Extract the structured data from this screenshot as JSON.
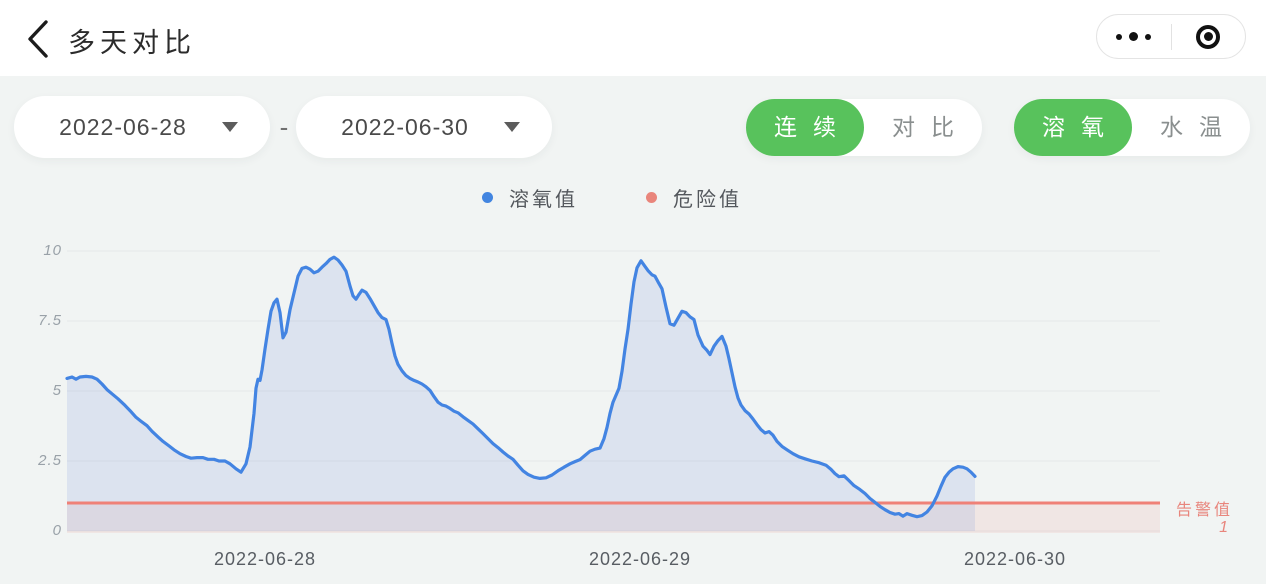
{
  "header": {
    "title": "多天对比",
    "back_icon": "chevron-left",
    "capsule": {
      "more_icon": "three-dots-menu",
      "exit_icon": "target-circle"
    }
  },
  "filters": {
    "date_from": "2022-06-28",
    "date_separator": "-",
    "date_to": "2022-06-30",
    "mode_toggle": {
      "options": [
        {
          "label": "连续",
          "active": true
        },
        {
          "label": "对比",
          "active": false
        }
      ]
    },
    "metric_toggle": {
      "options": [
        {
          "label": "溶氧",
          "active": true
        },
        {
          "label": "水温",
          "active": false
        }
      ]
    }
  },
  "colors": {
    "accent_green": "#58c25c",
    "page_background": "#f1f4f3",
    "header_background": "#ffffff"
  },
  "chart_data": {
    "type": "line",
    "title": "",
    "xlabel": "",
    "ylabel": "",
    "ylim": [
      0,
      10
    ],
    "grid": true,
    "legend_position": "top",
    "y_tick_values": [
      0,
      2.5,
      5,
      7.5,
      10
    ],
    "x_ticks": [
      "2022-06-28",
      "2022-06-29",
      "2022-06-30"
    ],
    "legend": [
      {
        "label": "溶氧值",
        "color": "#4285e0"
      },
      {
        "label": "危险值",
        "color": "#e9857b"
      }
    ],
    "alert_line": {
      "label": "告警值",
      "value": 1,
      "color": "#ef8177",
      "zone_fill": "rgba(236,130,120,0.12)"
    },
    "series": [
      {
        "name": "溶氧值",
        "color": "#4384e2",
        "area_fill": "rgba(113,146,216,0.16)",
        "points": [
          [
            67,
            5.45
          ],
          [
            72,
            5.5
          ],
          [
            76,
            5.42
          ],
          [
            80,
            5.5
          ],
          [
            86,
            5.52
          ],
          [
            92,
            5.5
          ],
          [
            97,
            5.42
          ],
          [
            102,
            5.25
          ],
          [
            107,
            5.05
          ],
          [
            112,
            4.9
          ],
          [
            118,
            4.72
          ],
          [
            124,
            4.52
          ],
          [
            130,
            4.3
          ],
          [
            136,
            4.06
          ],
          [
            141,
            3.92
          ],
          [
            147,
            3.76
          ],
          [
            152,
            3.56
          ],
          [
            158,
            3.36
          ],
          [
            163,
            3.2
          ],
          [
            169,
            3.04
          ],
          [
            174,
            2.9
          ],
          [
            180,
            2.76
          ],
          [
            186,
            2.66
          ],
          [
            191,
            2.6
          ],
          [
            197,
            2.62
          ],
          [
            203,
            2.62
          ],
          [
            208,
            2.56
          ],
          [
            214,
            2.56
          ],
          [
            219,
            2.5
          ],
          [
            225,
            2.5
          ],
          [
            230,
            2.4
          ],
          [
            236,
            2.22
          ],
          [
            241,
            2.1
          ],
          [
            246,
            2.4
          ],
          [
            250,
            3.0
          ],
          [
            254,
            4.2
          ],
          [
            256,
            5.1
          ],
          [
            258,
            5.42
          ],
          [
            260,
            5.38
          ],
          [
            262,
            5.75
          ],
          [
            265,
            6.5
          ],
          [
            268,
            7.2
          ],
          [
            271,
            7.85
          ],
          [
            274,
            8.15
          ],
          [
            277,
            8.28
          ],
          [
            280,
            7.8
          ],
          [
            283,
            6.9
          ],
          [
            286,
            7.1
          ],
          [
            290,
            7.9
          ],
          [
            294,
            8.5
          ],
          [
            298,
            9.1
          ],
          [
            302,
            9.38
          ],
          [
            306,
            9.42
          ],
          [
            310,
            9.35
          ],
          [
            314,
            9.22
          ],
          [
            318,
            9.28
          ],
          [
            322,
            9.42
          ],
          [
            326,
            9.55
          ],
          [
            330,
            9.7
          ],
          [
            334,
            9.78
          ],
          [
            338,
            9.68
          ],
          [
            342,
            9.5
          ],
          [
            346,
            9.28
          ],
          [
            350,
            8.75
          ],
          [
            353,
            8.4
          ],
          [
            356,
            8.28
          ],
          [
            359,
            8.45
          ],
          [
            362,
            8.6
          ],
          [
            366,
            8.52
          ],
          [
            370,
            8.3
          ],
          [
            374,
            8.05
          ],
          [
            378,
            7.8
          ],
          [
            382,
            7.62
          ],
          [
            386,
            7.55
          ],
          [
            389,
            7.2
          ],
          [
            392,
            6.7
          ],
          [
            395,
            6.25
          ],
          [
            398,
            5.95
          ],
          [
            402,
            5.72
          ],
          [
            406,
            5.55
          ],
          [
            410,
            5.45
          ],
          [
            414,
            5.38
          ],
          [
            418,
            5.32
          ],
          [
            422,
            5.25
          ],
          [
            426,
            5.15
          ],
          [
            430,
            5.02
          ],
          [
            434,
            4.8
          ],
          [
            438,
            4.6
          ],
          [
            442,
            4.5
          ],
          [
            446,
            4.46
          ],
          [
            450,
            4.38
          ],
          [
            454,
            4.28
          ],
          [
            458,
            4.22
          ],
          [
            463,
            4.08
          ],
          [
            468,
            3.95
          ],
          [
            473,
            3.82
          ],
          [
            478,
            3.65
          ],
          [
            483,
            3.48
          ],
          [
            488,
            3.3
          ],
          [
            493,
            3.12
          ],
          [
            498,
            2.98
          ],
          [
            503,
            2.82
          ],
          [
            508,
            2.68
          ],
          [
            513,
            2.56
          ],
          [
            518,
            2.35
          ],
          [
            523,
            2.15
          ],
          [
            528,
            2.02
          ],
          [
            534,
            1.92
          ],
          [
            540,
            1.88
          ],
          [
            546,
            1.9
          ],
          [
            552,
            2.0
          ],
          [
            558,
            2.15
          ],
          [
            564,
            2.28
          ],
          [
            570,
            2.4
          ],
          [
            575,
            2.48
          ],
          [
            580,
            2.55
          ],
          [
            585,
            2.7
          ],
          [
            590,
            2.85
          ],
          [
            595,
            2.92
          ],
          [
            600,
            2.96
          ],
          [
            604,
            3.3
          ],
          [
            607,
            3.7
          ],
          [
            610,
            4.2
          ],
          [
            613,
            4.6
          ],
          [
            616,
            4.85
          ],
          [
            619,
            5.1
          ],
          [
            622,
            5.7
          ],
          [
            625,
            6.5
          ],
          [
            628,
            7.2
          ],
          [
            631,
            8.1
          ],
          [
            634,
            8.9
          ],
          [
            637,
            9.4
          ],
          [
            641,
            9.65
          ],
          [
            645,
            9.45
          ],
          [
            648,
            9.3
          ],
          [
            652,
            9.15
          ],
          [
            655,
            9.1
          ],
          [
            658,
            8.9
          ],
          [
            662,
            8.65
          ],
          [
            666,
            8.0
          ],
          [
            670,
            7.4
          ],
          [
            674,
            7.35
          ],
          [
            678,
            7.6
          ],
          [
            682,
            7.85
          ],
          [
            686,
            7.8
          ],
          [
            690,
            7.65
          ],
          [
            694,
            7.55
          ],
          [
            698,
            7.0
          ],
          [
            703,
            6.6
          ],
          [
            707,
            6.45
          ],
          [
            710,
            6.3
          ],
          [
            714,
            6.6
          ],
          [
            718,
            6.8
          ],
          [
            722,
            6.95
          ],
          [
            726,
            6.6
          ],
          [
            729,
            6.15
          ],
          [
            732,
            5.65
          ],
          [
            735,
            5.15
          ],
          [
            738,
            4.75
          ],
          [
            741,
            4.5
          ],
          [
            745,
            4.3
          ],
          [
            749,
            4.18
          ],
          [
            753,
            4.0
          ],
          [
            757,
            3.8
          ],
          [
            761,
            3.62
          ],
          [
            765,
            3.5
          ],
          [
            769,
            3.55
          ],
          [
            773,
            3.42
          ],
          [
            777,
            3.2
          ],
          [
            782,
            3.02
          ],
          [
            787,
            2.9
          ],
          [
            793,
            2.76
          ],
          [
            799,
            2.65
          ],
          [
            805,
            2.58
          ],
          [
            812,
            2.5
          ],
          [
            819,
            2.44
          ],
          [
            826,
            2.35
          ],
          [
            831,
            2.2
          ],
          [
            835,
            2.05
          ],
          [
            839,
            1.94
          ],
          [
            844,
            1.97
          ],
          [
            849,
            1.8
          ],
          [
            854,
            1.62
          ],
          [
            860,
            1.48
          ],
          [
            865,
            1.34
          ],
          [
            870,
            1.16
          ],
          [
            875,
            1.02
          ],
          [
            880,
            0.88
          ],
          [
            885,
            0.76
          ],
          [
            890,
            0.66
          ],
          [
            895,
            0.6
          ],
          [
            899,
            0.62
          ],
          [
            903,
            0.53
          ],
          [
            907,
            0.62
          ],
          [
            912,
            0.56
          ],
          [
            917,
            0.51
          ],
          [
            922,
            0.55
          ],
          [
            927,
            0.68
          ],
          [
            932,
            0.9
          ],
          [
            937,
            1.25
          ],
          [
            941,
            1.6
          ],
          [
            945,
            1.92
          ],
          [
            949,
            2.1
          ],
          [
            953,
            2.22
          ],
          [
            958,
            2.3
          ],
          [
            963,
            2.28
          ],
          [
            967,
            2.22
          ],
          [
            971,
            2.1
          ],
          [
            975,
            1.95
          ]
        ]
      }
    ]
  }
}
